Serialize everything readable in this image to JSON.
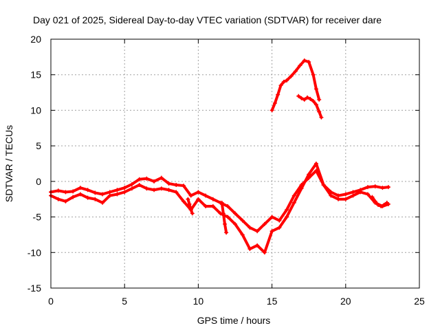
{
  "chart_data": {
    "type": "scatter",
    "title": "Day 021 of 2025, Sidereal Day-to-day VTEC variation (SDTVAR) for receiver dare",
    "xlabel": "GPS time / hours",
    "ylabel": "SDTVAR / TECUs",
    "xlim": [
      0,
      25
    ],
    "ylim": [
      -15,
      20
    ],
    "xticks": [
      "0",
      "5",
      "10",
      "15",
      "20",
      "25"
    ],
    "yticks": [
      "-15",
      "-10",
      "-5",
      "0",
      "5",
      "10",
      "15",
      "20"
    ],
    "grid": true,
    "series_color": "#ff0000",
    "marker": "plus",
    "series": [
      {
        "name": "track-main-upper",
        "x": [
          0,
          0.5,
          1,
          1.5,
          2,
          2.5,
          3,
          3.5,
          4,
          4.5,
          5,
          5.5,
          6,
          6.5,
          7,
          7.5,
          8,
          8.5,
          9,
          9.5,
          10,
          10.5,
          11,
          11.5,
          12,
          12.5,
          13,
          13.5,
          14,
          14.5,
          15,
          15.5,
          16,
          16.5,
          17,
          17.5,
          18,
          18.5,
          19,
          19.5,
          20,
          20.5,
          21,
          21.5,
          22,
          22.5,
          22.9
        ],
        "y": [
          -1.5,
          -1.3,
          -1.5,
          -1.4,
          -0.9,
          -1.2,
          -1.6,
          -1.8,
          -1.5,
          -1.2,
          -0.9,
          -0.4,
          0.3,
          0.4,
          0.0,
          0.5,
          -0.3,
          -0.5,
          -0.6,
          -2.0,
          -1.5,
          -2.0,
          -2.5,
          -3.0,
          -3.5,
          -4.5,
          -5.5,
          -6.5,
          -7.0,
          -6.0,
          -5.0,
          -5.5,
          -4.0,
          -2.0,
          -0.5,
          0.5,
          1.5,
          -0.5,
          -1.5,
          -2.0,
          -1.8,
          -1.5,
          -1.2,
          -0.8,
          -0.7,
          -0.9,
          -0.8
        ]
      },
      {
        "name": "track-main-lower",
        "x": [
          0,
          0.5,
          1,
          1.5,
          2,
          2.5,
          3,
          3.5,
          4,
          4.5,
          5,
          5.5,
          6,
          6.5,
          7,
          7.5,
          8,
          8.5,
          9,
          9.5,
          10,
          10.5,
          11,
          11.5,
          12,
          12.5,
          13,
          13.5,
          14,
          14.5,
          15,
          15.5,
          16,
          16.5,
          17,
          17.5,
          18,
          18.5,
          19,
          19.5,
          20,
          20.5,
          21,
          21.5,
          22,
          22.5,
          22.9
        ],
        "y": [
          -2.0,
          -2.5,
          -2.8,
          -2.2,
          -1.8,
          -2.3,
          -2.5,
          -3.0,
          -2.0,
          -1.8,
          -1.5,
          -1.0,
          -0.5,
          -1.0,
          -1.2,
          -1.0,
          -1.2,
          -1.5,
          -2.8,
          -4.0,
          -2.5,
          -3.5,
          -3.5,
          -4.5,
          -5.0,
          -6.0,
          -7.5,
          -9.5,
          -9.0,
          -10.0,
          -7.0,
          -6.5,
          -5.0,
          -3.0,
          -1.0,
          1.0,
          2.5,
          -0.5,
          -2.0,
          -2.5,
          -2.5,
          -2.0,
          -1.5,
          -1.8,
          -3.0,
          -3.5,
          -3.2
        ]
      },
      {
        "name": "arc-upper",
        "x": [
          15.0,
          15.2,
          15.4,
          15.6,
          15.8,
          16.0,
          16.3,
          16.6,
          16.9,
          17.2,
          17.5,
          17.8,
          18.0,
          18.2
        ],
        "y": [
          10.0,
          11.0,
          12.2,
          13.5,
          14.0,
          14.2,
          14.8,
          15.5,
          16.3,
          17.0,
          16.8,
          15.0,
          13.0,
          11.5
        ]
      },
      {
        "name": "arc-lower",
        "x": [
          16.8,
          17.0,
          17.2,
          17.4,
          17.6,
          17.8,
          18.0,
          18.2,
          18.35
        ],
        "y": [
          12.0,
          11.7,
          11.5,
          11.8,
          11.6,
          11.3,
          10.8,
          9.8,
          9.0
        ]
      },
      {
        "name": "spike-12h",
        "x": [
          11.6,
          11.7,
          11.8,
          11.9
        ],
        "y": [
          -3.0,
          -4.5,
          -6.0,
          -7.2
        ]
      },
      {
        "name": "spike-9_5h",
        "x": [
          9.3,
          9.4,
          9.5,
          9.6
        ],
        "y": [
          -2.5,
          -3.2,
          -4.0,
          -4.5
        ]
      },
      {
        "name": "dip-21_8h",
        "x": [
          21.8,
          22.0,
          22.2,
          22.4,
          22.6,
          22.8
        ],
        "y": [
          -2.2,
          -2.8,
          -3.3,
          -3.5,
          -3.3,
          -3.0
        ]
      }
    ]
  }
}
